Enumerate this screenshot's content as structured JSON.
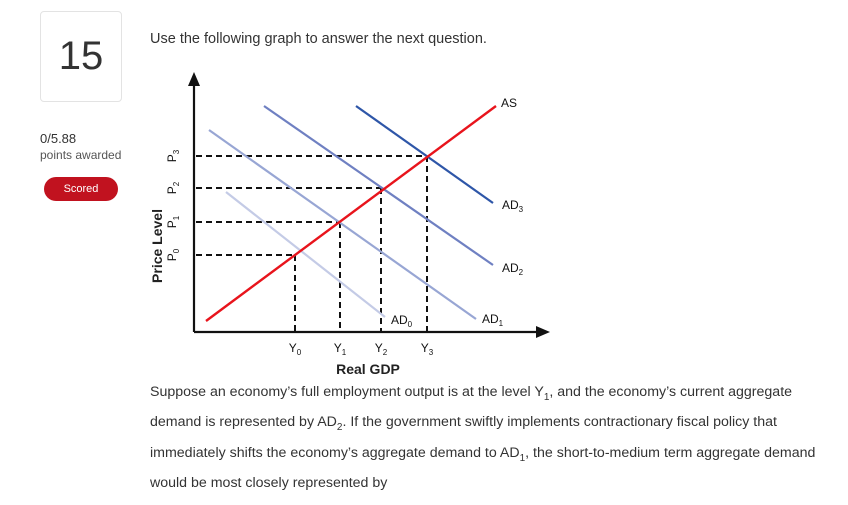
{
  "question": {
    "number": "15",
    "score": "0/5.88",
    "score_label": "points awarded",
    "status": "Scored",
    "prompt": "Use the following graph to answer the next question.",
    "text_parts": [
      "Suppose an economy’s full employment output is at the level Y",
      "1",
      ", and the economy’s current aggregate demand is represented by AD",
      "2",
      ". If the government swiftly implements contractionary fiscal policy that immediately shifts the economy’s aggregate demand to AD",
      "1",
      ", the short-to-medium term aggregate demand would be most closely represented by"
    ]
  },
  "graph": {
    "y_axis_label": "Price Level",
    "x_axis_label": "Real GDP",
    "as_label": "AS",
    "price_levels": [
      {
        "main": "P",
        "sub": "0"
      },
      {
        "main": "P",
        "sub": "1"
      },
      {
        "main": "P",
        "sub": "2"
      },
      {
        "main": "P",
        "sub": "3"
      }
    ],
    "output_levels": [
      {
        "main": "Y",
        "sub": "0"
      },
      {
        "main": "Y",
        "sub": "1"
      },
      {
        "main": "Y",
        "sub": "2"
      },
      {
        "main": "Y",
        "sub": "3"
      }
    ],
    "ad_curves": [
      {
        "main": "AD",
        "sub": "0"
      },
      {
        "main": "AD",
        "sub": "1"
      },
      {
        "main": "AD",
        "sub": "2"
      },
      {
        "main": "AD",
        "sub": "3"
      }
    ],
    "colors": {
      "as": "#e8141c",
      "ad0": "#c4cbe6",
      "ad1": "#98a6d4",
      "ad2": "#6f80c2",
      "ad3": "#2e56a8",
      "axis": "#111111"
    }
  }
}
